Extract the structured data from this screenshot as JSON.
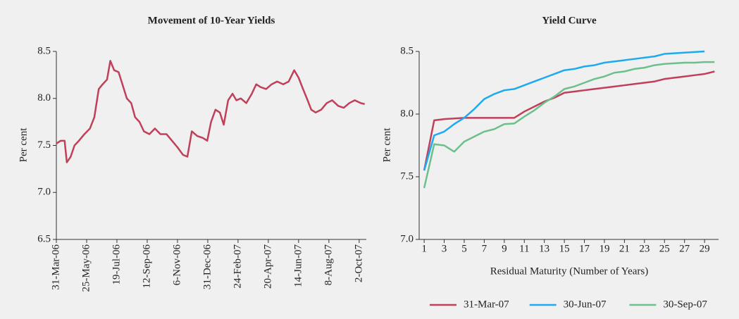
{
  "chart_data": [
    {
      "type": "line",
      "title": "Movement of 10-Year Yields",
      "y_label": "Per cent",
      "color": "#c0405a",
      "x": [
        "31-Mar-06",
        "8-Apr-06",
        "15-Apr-06",
        "19-Apr-06",
        "26-Apr-06",
        "3-May-06",
        "11-May-06",
        "21-May-06",
        "31-May-06",
        "8-Jun-06",
        "16-Jun-06",
        "23-Jun-06",
        "1-Jul-06",
        "7-Jul-06",
        "14-Jul-06",
        "22-Jul-06",
        "29-Jul-06",
        "6-Aug-06",
        "14-Aug-06",
        "21-Aug-06",
        "29-Aug-06",
        "6-Sep-06",
        "16-Sep-06",
        "26-Sep-06",
        "6-Oct-06",
        "17-Oct-06",
        "27-Oct-06",
        "6-Nov-06",
        "16-Nov-06",
        "24-Nov-06",
        "2-Dec-06",
        "12-Dec-06",
        "22-Dec-06",
        "30-Dec-06",
        "6-Jan-07",
        "14-Jan-07",
        "22-Jan-07",
        "29-Jan-07",
        "6-Feb-07",
        "14-Feb-07",
        "21-Feb-07",
        "1-Mar-07",
        "11-Mar-07",
        "21-Mar-07",
        "29-Mar-07",
        "6-Apr-07",
        "16-Apr-07",
        "26-Apr-07",
        "6-May-07",
        "17-May-07",
        "27-May-07",
        "6-Jun-07",
        "14-Jun-07",
        "22-Jun-07",
        "29-Jun-07",
        "7-Jul-07",
        "15-Jul-07",
        "25-Jul-07",
        "4-Aug-07",
        "14-Aug-07",
        "25-Aug-07",
        "4-Sep-07",
        "14-Sep-07",
        "24-Sep-07",
        "5-Oct-07",
        "12-Oct-07"
      ],
      "values": [
        7.52,
        7.55,
        7.55,
        7.32,
        7.38,
        7.5,
        7.55,
        7.62,
        7.68,
        7.8,
        8.1,
        8.15,
        8.2,
        8.4,
        8.3,
        8.28,
        8.15,
        8.0,
        7.95,
        7.8,
        7.75,
        7.65,
        7.62,
        7.68,
        7.62,
        7.62,
        7.55,
        7.48,
        7.4,
        7.38,
        7.65,
        7.6,
        7.58,
        7.55,
        7.75,
        7.88,
        7.85,
        7.72,
        7.98,
        8.05,
        7.98,
        8.0,
        7.95,
        8.05,
        8.15,
        8.12,
        8.1,
        8.15,
        8.18,
        8.15,
        8.18,
        8.3,
        8.22,
        8.1,
        8.0,
        7.88,
        7.85,
        7.88,
        7.95,
        7.98,
        7.92,
        7.9,
        7.95,
        7.98,
        7.95,
        7.94
      ],
      "xlim": [
        "31-Mar-06",
        "15-Oct-07"
      ],
      "xticks": [
        "31-Mar-06",
        "25-May-06",
        "19-Jul-06",
        "12-Sep-06",
        "6-Nov-06",
        "31-Dec-06",
        "24-Feb-07",
        "20-Apr-07",
        "14-Jun-07",
        "8-Aug-07",
        "2-Oct-07"
      ],
      "ylim": [
        6.5,
        8.5
      ],
      "yticks": [
        6.5,
        {
          "value": 7,
          "label": "7.0"
        },
        7.5,
        {
          "value": 8,
          "label": "8.0"
        },
        8.5
      ]
    },
    {
      "type": "line",
      "title": "Yield Curve",
      "y_label": "Per cent",
      "x_label": "Residual Maturity (Number of Years)",
      "x": [
        1,
        2,
        3,
        4,
        5,
        6,
        7,
        8,
        9,
        10,
        11,
        12,
        13,
        14,
        15,
        16,
        17,
        18,
        19,
        20,
        21,
        22,
        23,
        24,
        25,
        26,
        27,
        28,
        29,
        30
      ],
      "series": [
        {
          "name": "31-Mar-07",
          "color": "#c0405a",
          "values": [
            7.55,
            7.95,
            7.96,
            7.965,
            7.97,
            7.97,
            7.97,
            7.97,
            7.97,
            7.97,
            8.02,
            8.06,
            8.1,
            8.13,
            8.17,
            8.18,
            8.19,
            8.2,
            8.21,
            8.22,
            8.23,
            8.24,
            8.25,
            8.26,
            8.28,
            8.29,
            8.3,
            8.31,
            8.32,
            8.34
          ]
        },
        {
          "name": "30-Jun-07",
          "color": "#1eaaf0",
          "values": [
            7.55,
            7.83,
            7.86,
            7.92,
            7.97,
            8.04,
            8.12,
            8.16,
            8.19,
            8.2,
            8.23,
            8.26,
            8.29,
            8.32,
            8.35,
            8.36,
            8.38,
            8.39,
            8.41,
            8.42,
            8.43,
            8.44,
            8.45,
            8.46,
            8.48,
            8.485,
            8.49,
            8.495,
            8.5,
            null
          ]
        },
        {
          "name": "30-Sep-07",
          "color": "#6cc08c",
          "values": [
            7.41,
            7.76,
            7.75,
            7.7,
            7.78,
            7.82,
            7.86,
            7.88,
            7.92,
            7.925,
            7.98,
            8.03,
            8.09,
            8.14,
            8.2,
            8.22,
            8.25,
            8.28,
            8.3,
            8.33,
            8.34,
            8.36,
            8.37,
            8.39,
            8.4,
            8.405,
            8.41,
            8.41,
            8.415,
            8.415
          ]
        }
      ],
      "xlim": [
        0.5,
        30.4
      ],
      "xticks": [
        1,
        3,
        5,
        7,
        9,
        11,
        13,
        15,
        17,
        19,
        21,
        23,
        25,
        27,
        29
      ],
      "ylim": [
        7,
        8.5
      ],
      "yticks": [
        {
          "value": 7,
          "label": "7.0"
        },
        7.5,
        {
          "value": 8,
          "label": "8.0"
        },
        8.5
      ]
    }
  ]
}
